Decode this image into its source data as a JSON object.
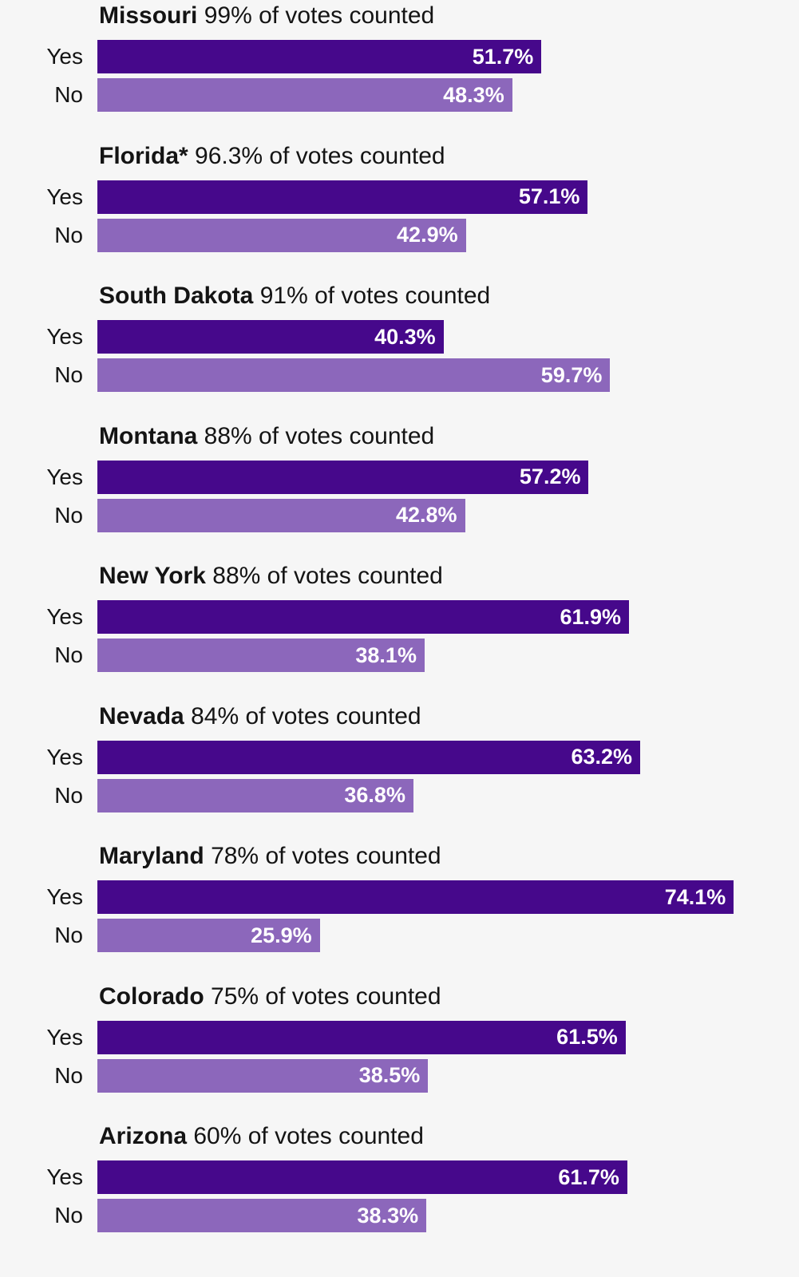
{
  "chart_data": {
    "type": "bar",
    "orientation": "horizontal",
    "xlim": [
      0,
      100
    ],
    "colors": {
      "Yes": "#46088b",
      "No": "#8c67bb"
    },
    "groups": [
      {
        "name": "Missouri",
        "counted": "99% of votes counted",
        "yes": 51.7,
        "no": 48.3,
        "yes_label": "51.7%",
        "no_label": "48.3%"
      },
      {
        "name": "Florida*",
        "counted": "96.3% of votes counted",
        "yes": 57.1,
        "no": 42.9,
        "yes_label": "57.1%",
        "no_label": "42.9%"
      },
      {
        "name": "South Dakota",
        "counted": "91% of votes counted",
        "yes": 40.3,
        "no": 59.7,
        "yes_label": "40.3%",
        "no_label": "59.7%"
      },
      {
        "name": "Montana",
        "counted": "88% of votes counted",
        "yes": 57.2,
        "no": 42.8,
        "yes_label": "57.2%",
        "no_label": "42.8%"
      },
      {
        "name": "New York",
        "counted": "88% of votes counted",
        "yes": 61.9,
        "no": 38.1,
        "yes_label": "61.9%",
        "no_label": "38.1%"
      },
      {
        "name": "Nevada",
        "counted": "84% of votes counted",
        "yes": 63.2,
        "no": 36.8,
        "yes_label": "63.2%",
        "no_label": "36.8%"
      },
      {
        "name": "Maryland",
        "counted": "78% of votes counted",
        "yes": 74.1,
        "no": 25.9,
        "yes_label": "74.1%",
        "no_label": "25.9%"
      },
      {
        "name": "Colorado",
        "counted": "75% of votes counted",
        "yes": 61.5,
        "no": 38.5,
        "yes_label": "61.5%",
        "no_label": "38.5%"
      },
      {
        "name": "Arizona",
        "counted": "60% of votes counted",
        "yes": 61.7,
        "no": 38.3,
        "yes_label": "61.7%",
        "no_label": "38.3%"
      }
    ],
    "row_labels": {
      "yes": "Yes",
      "no": "No"
    }
  }
}
